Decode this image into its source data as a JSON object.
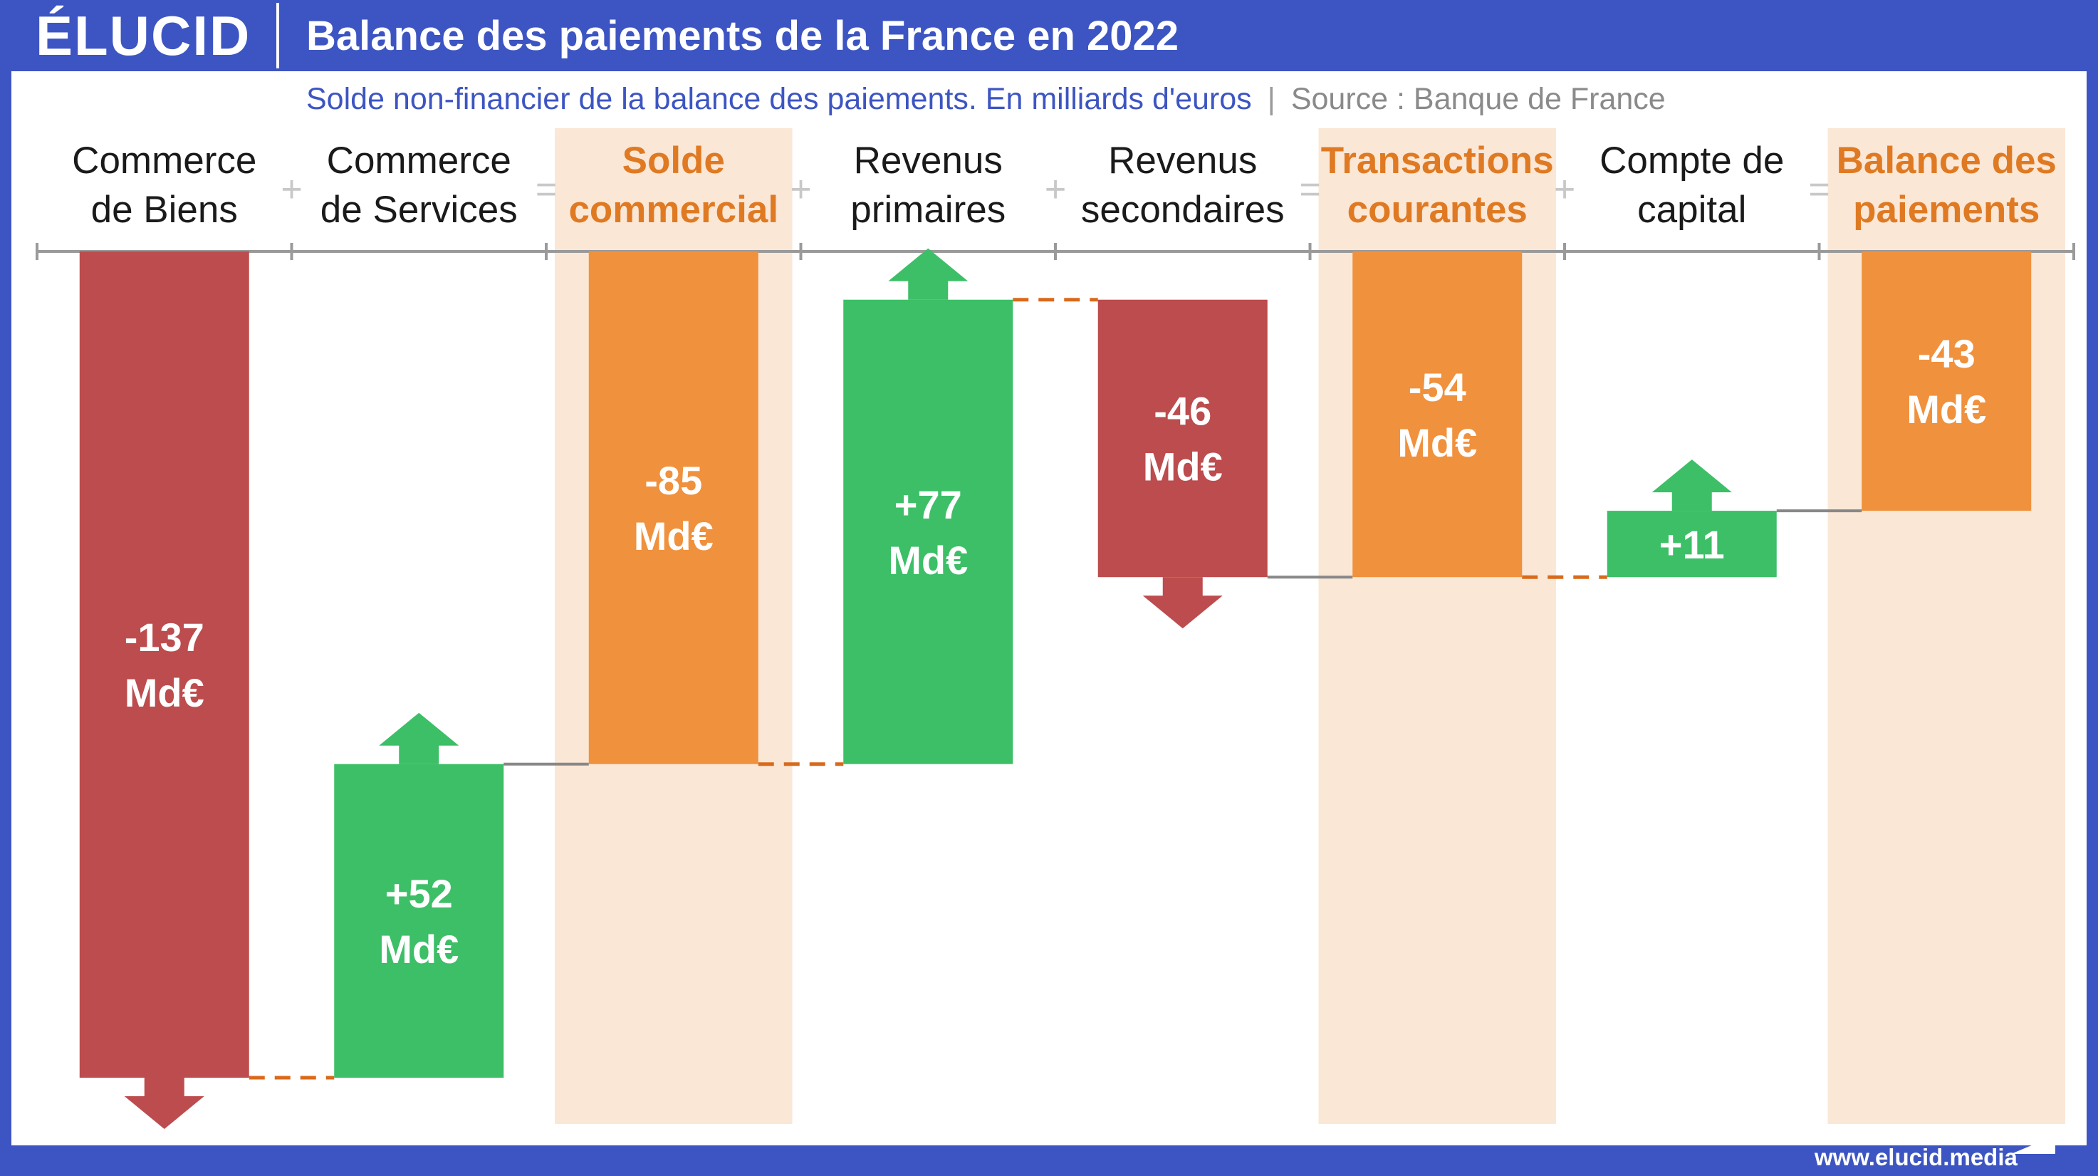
{
  "header": {
    "logo": "ÉLUCID",
    "title": "Balance des paiements de la France en 2022"
  },
  "subtitle": {
    "text": "Solde non-financier de la balance des paiements. En milliards d'euros",
    "separator": "|",
    "source": "Source : Banque de France"
  },
  "footer": {
    "url": "www.elucid.media"
  },
  "colors": {
    "background": "#3d55c2",
    "negative": "#bc4c4d",
    "positive": "#3dbf67",
    "total": "#f0913d",
    "total_band": "#fbe7d6",
    "total_label": "#df7a23",
    "connector_dash": "#d86a1c",
    "connector_solid": "#888888"
  },
  "chart_data": {
    "type": "waterfall",
    "unit": "Md€",
    "categories": [
      {
        "lines": [
          "Commerce",
          "de Biens"
        ],
        "kind": "negative",
        "value": -137,
        "label": [
          "-137",
          "Md€"
        ],
        "op": "+"
      },
      {
        "lines": [
          "Commerce",
          "de Services"
        ],
        "kind": "positive",
        "value": 52,
        "label": [
          "+52",
          "Md€"
        ],
        "op": "="
      },
      {
        "lines": [
          "Solde",
          "commercial"
        ],
        "kind": "total",
        "value": -85,
        "label": [
          "-85",
          "Md€"
        ],
        "op": "+"
      },
      {
        "lines": [
          "Revenus",
          "primaires"
        ],
        "kind": "positive",
        "value": 77,
        "label": [
          "+77",
          "Md€"
        ],
        "op": "+"
      },
      {
        "lines": [
          "Revenus",
          "secondaires"
        ],
        "kind": "negative",
        "value": -46,
        "label": [
          "-46",
          "Md€"
        ],
        "op": "="
      },
      {
        "lines": [
          "Transactions",
          "courantes"
        ],
        "kind": "total",
        "value": -54,
        "label": [
          "-54",
          "Md€"
        ],
        "op": "+"
      },
      {
        "lines": [
          "Compte de",
          "capital"
        ],
        "kind": "positive",
        "value": 11,
        "label": [
          "+11"
        ],
        "op": "="
      },
      {
        "lines": [
          "Balance des",
          "paiements"
        ],
        "kind": "total",
        "value": -43,
        "label": [
          "-43",
          "Md€"
        ],
        "op": ""
      }
    ]
  }
}
